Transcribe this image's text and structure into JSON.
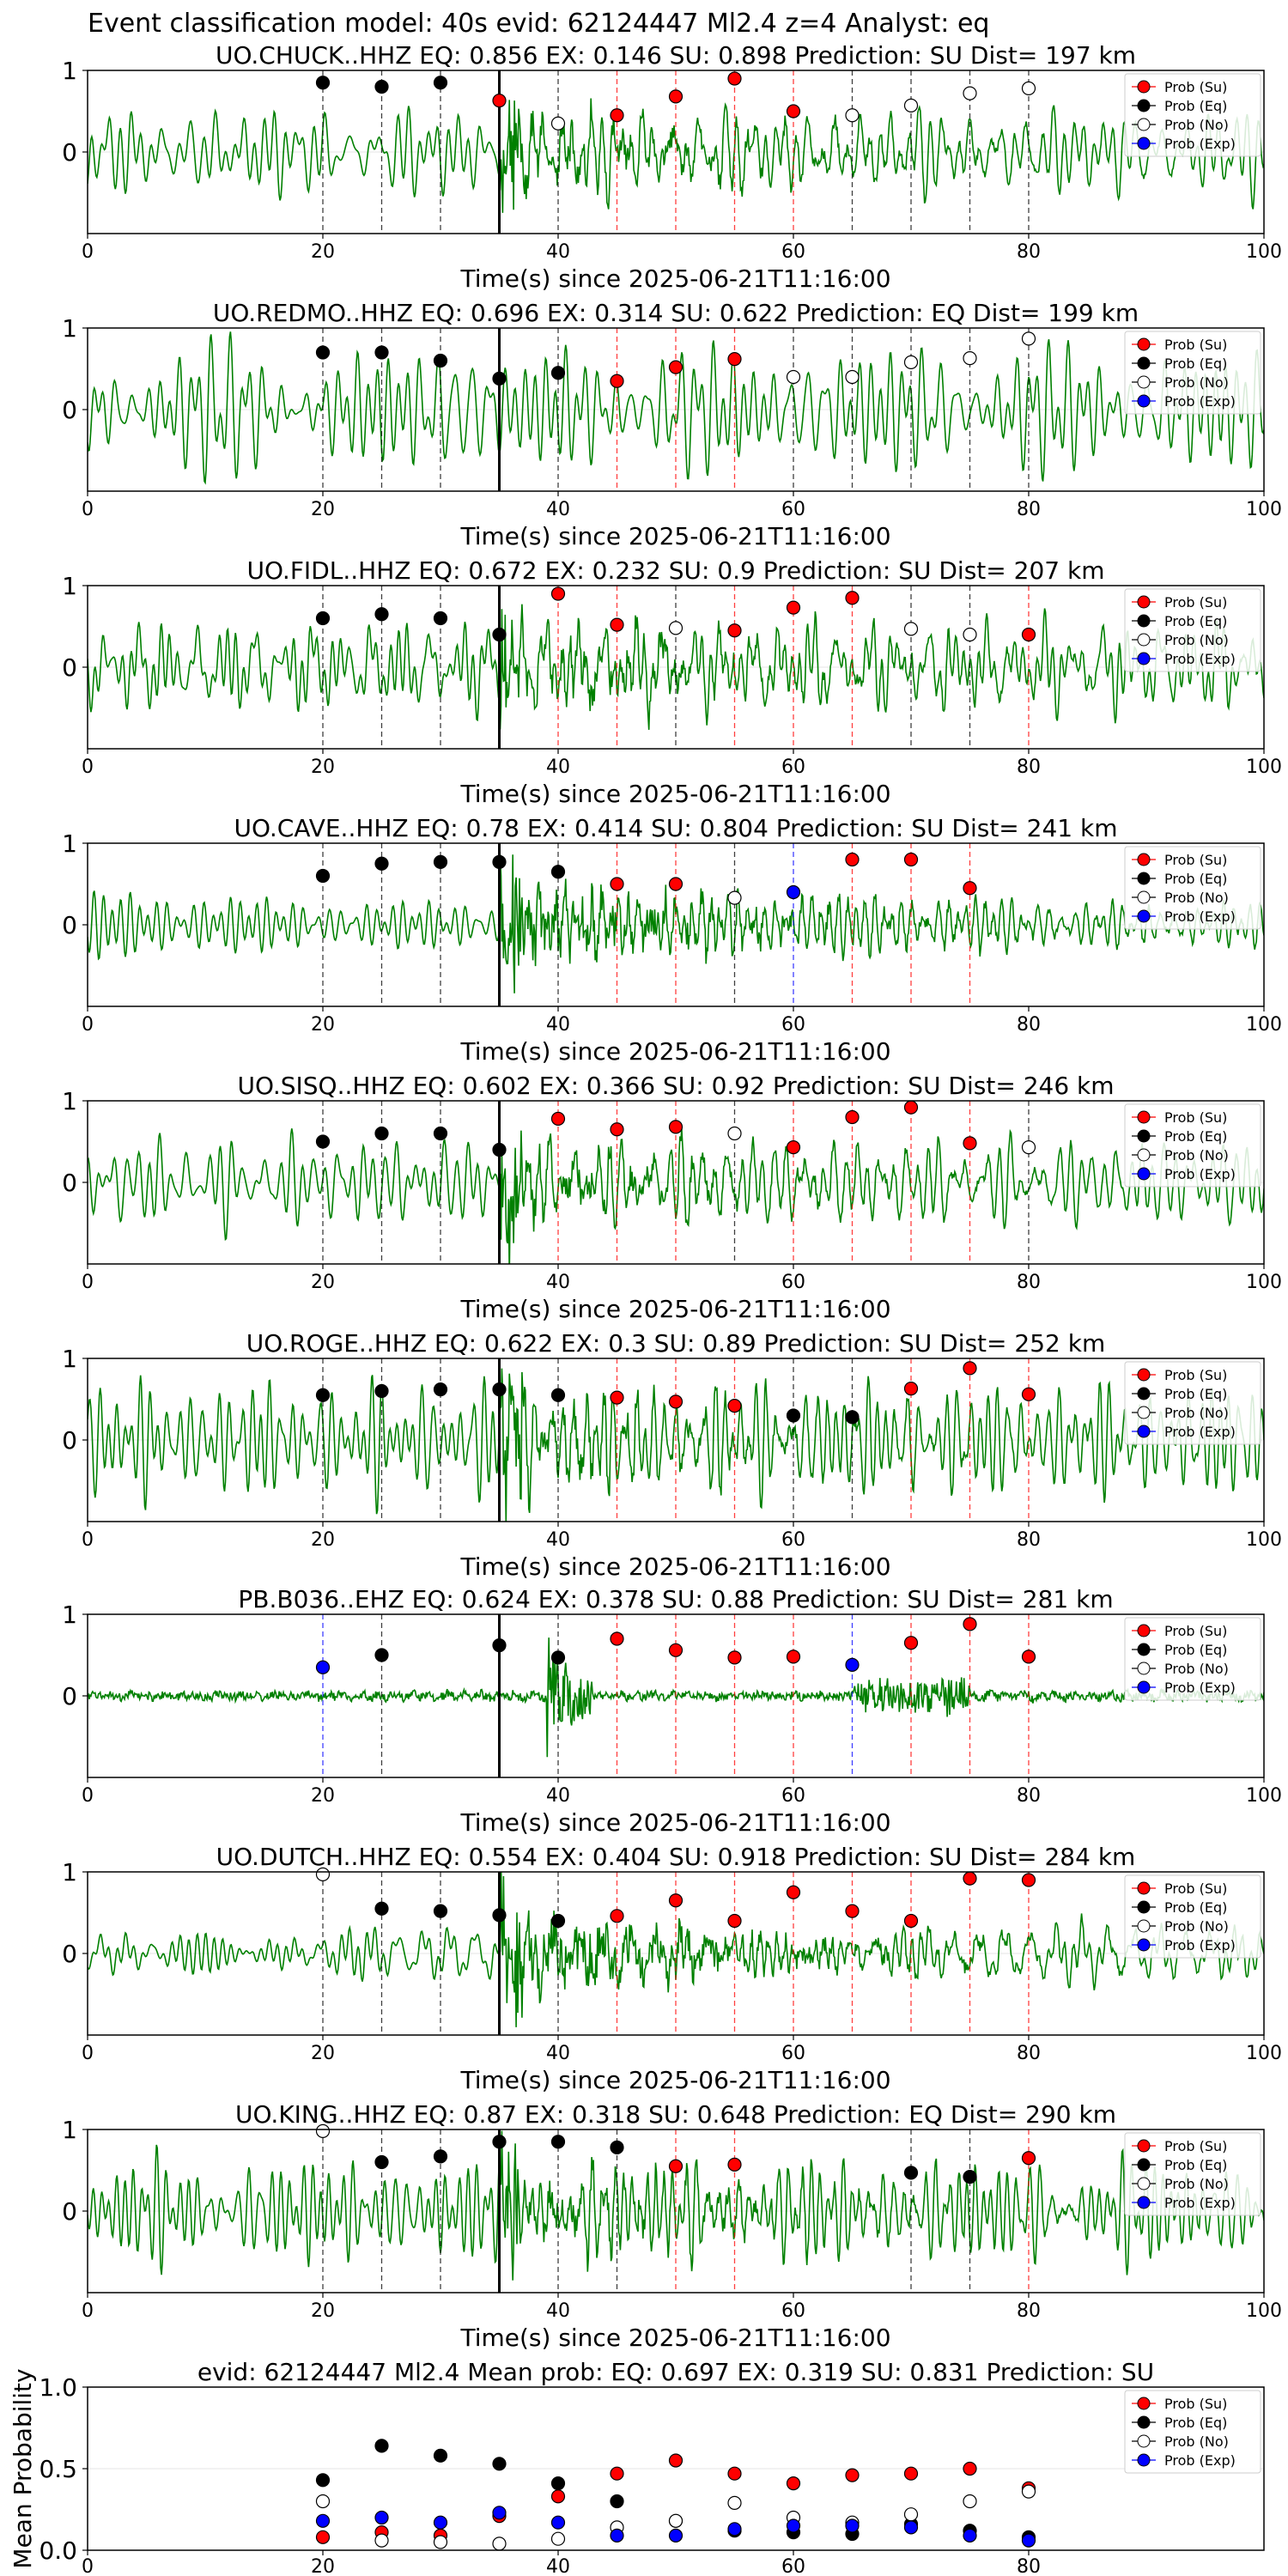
{
  "figure": {
    "title": "Event classification model: 40s evid: 62124447 Ml2.4 z=4 Analyst: eq",
    "colors": {
      "trace": "#008000",
      "su": "#ff0000",
      "eq": "#000000",
      "no": "#ffffff",
      "exp": "#0000ff",
      "pick_line": "#000000",
      "su_line": "#ff0000",
      "eq_line": "#000000",
      "exp_line": "#0000ff"
    }
  },
  "legend": [
    "Prob (Su)",
    "Prob (Eq)",
    "Prob (No)",
    "Prob (Exp)"
  ],
  "chart_data": [
    {
      "type": "scatter",
      "title": "UO.CHUCK..HHZ   EQ: 0.856  EX: 0.146  SU: 0.898   Prediction: SU    Dist= 197 km",
      "xlabel": "Time(s) since 2025-06-21T11:16:00",
      "ylabel": "",
      "xlim": [
        0,
        100
      ],
      "ylim": [
        -1,
        1
      ],
      "xticks": [
        0,
        20,
        40,
        60,
        80,
        100
      ],
      "yticks": [
        0,
        1
      ],
      "pick_time": 35,
      "trace": {
        "style": "mixed",
        "amplitude": 0.55
      },
      "legend_entries": [
        "Prob (Su)",
        "Prob (Eq)",
        "Prob (No)",
        "Prob (Exp)"
      ],
      "windows": [
        {
          "t": 20,
          "cls": "eq",
          "p": 0.85
        },
        {
          "t": 25,
          "cls": "eq",
          "p": 0.8
        },
        {
          "t": 30,
          "cls": "eq",
          "p": 0.85
        },
        {
          "t": 35,
          "cls": "su",
          "p": 0.63
        },
        {
          "t": 40,
          "cls": "no",
          "p": 0.35
        },
        {
          "t": 45,
          "cls": "su",
          "p": 0.45
        },
        {
          "t": 50,
          "cls": "su",
          "p": 0.68
        },
        {
          "t": 55,
          "cls": "su",
          "p": 0.9
        },
        {
          "t": 60,
          "cls": "su",
          "p": 0.5
        },
        {
          "t": 65,
          "cls": "no",
          "p": 0.45
        },
        {
          "t": 70,
          "cls": "no",
          "p": 0.57
        },
        {
          "t": 75,
          "cls": "no",
          "p": 0.72
        },
        {
          "t": 80,
          "cls": "no",
          "p": 0.78
        }
      ]
    },
    {
      "type": "scatter",
      "title": "UO.REDMO..HHZ   EQ: 0.696  EX: 0.314  SU: 0.622   Prediction: EQ    Dist= 199 km",
      "xlabel": "Time(s) since 2025-06-21T11:16:00",
      "ylabel": "",
      "xlim": [
        0,
        100
      ],
      "ylim": [
        -1,
        1
      ],
      "xticks": [
        0,
        20,
        40,
        60,
        80,
        100
      ],
      "yticks": [
        0,
        1
      ],
      "pick_time": 35,
      "trace": {
        "style": "smooth",
        "amplitude": 0.55
      },
      "legend_entries": [
        "Prob (Su)",
        "Prob (Eq)",
        "Prob (No)",
        "Prob (Exp)"
      ],
      "windows": [
        {
          "t": 20,
          "cls": "eq",
          "p": 0.7
        },
        {
          "t": 25,
          "cls": "eq",
          "p": 0.7
        },
        {
          "t": 30,
          "cls": "eq",
          "p": 0.6
        },
        {
          "t": 35,
          "cls": "eq",
          "p": 0.38
        },
        {
          "t": 40,
          "cls": "eq",
          "p": 0.45
        },
        {
          "t": 45,
          "cls": "su",
          "p": 0.35
        },
        {
          "t": 50,
          "cls": "su",
          "p": 0.52
        },
        {
          "t": 55,
          "cls": "su",
          "p": 0.62
        },
        {
          "t": 60,
          "cls": "no",
          "p": 0.4
        },
        {
          "t": 65,
          "cls": "no",
          "p": 0.4
        },
        {
          "t": 70,
          "cls": "no",
          "p": 0.58
        },
        {
          "t": 75,
          "cls": "no",
          "p": 0.63
        },
        {
          "t": 80,
          "cls": "no",
          "p": 0.87
        }
      ]
    },
    {
      "type": "scatter",
      "title": "UO.FIDL..HHZ   EQ: 0.672  EX: 0.232  SU: 0.9   Prediction: SU    Dist= 207 km",
      "xlabel": "Time(s) since 2025-06-21T11:16:00",
      "ylabel": "",
      "xlim": [
        0,
        100
      ],
      "ylim": [
        -1,
        1
      ],
      "xticks": [
        0,
        20,
        40,
        60,
        80,
        100
      ],
      "yticks": [
        0,
        1
      ],
      "pick_time": 35,
      "trace": {
        "style": "mixed",
        "amplitude": 0.5
      },
      "legend_entries": [
        "Prob (Su)",
        "Prob (Eq)",
        "Prob (No)",
        "Prob (Exp)"
      ],
      "windows": [
        {
          "t": 20,
          "cls": "eq",
          "p": 0.6
        },
        {
          "t": 25,
          "cls": "eq",
          "p": 0.65
        },
        {
          "t": 30,
          "cls": "eq",
          "p": 0.6
        },
        {
          "t": 35,
          "cls": "eq",
          "p": 0.4
        },
        {
          "t": 40,
          "cls": "su",
          "p": 0.9
        },
        {
          "t": 45,
          "cls": "su",
          "p": 0.52
        },
        {
          "t": 50,
          "cls": "no",
          "p": 0.48
        },
        {
          "t": 55,
          "cls": "su",
          "p": 0.45
        },
        {
          "t": 60,
          "cls": "su",
          "p": 0.73
        },
        {
          "t": 65,
          "cls": "su",
          "p": 0.85
        },
        {
          "t": 70,
          "cls": "no",
          "p": 0.47
        },
        {
          "t": 75,
          "cls": "no",
          "p": 0.4
        },
        {
          "t": 80,
          "cls": "su",
          "p": 0.4
        }
      ]
    },
    {
      "type": "scatter",
      "title": "UO.CAVE..HHZ   EQ: 0.78  EX: 0.414  SU: 0.804   Prediction: SU    Dist= 241 km",
      "xlabel": "Time(s) since 2025-06-21T11:16:00",
      "ylabel": "",
      "xlim": [
        0,
        100
      ],
      "ylim": [
        -1,
        1
      ],
      "xticks": [
        0,
        20,
        40,
        60,
        80,
        100
      ],
      "yticks": [
        0,
        1
      ],
      "pick_time": 35,
      "trace": {
        "style": "noisy",
        "amplitude": 0.3
      },
      "legend_entries": [
        "Prob (Su)",
        "Prob (Eq)",
        "Prob (No)",
        "Prob (Exp)"
      ],
      "windows": [
        {
          "t": 20,
          "cls": "eq",
          "p": 0.6
        },
        {
          "t": 25,
          "cls": "eq",
          "p": 0.75
        },
        {
          "t": 30,
          "cls": "eq",
          "p": 0.77
        },
        {
          "t": 35,
          "cls": "eq",
          "p": 0.77
        },
        {
          "t": 40,
          "cls": "eq",
          "p": 0.65
        },
        {
          "t": 45,
          "cls": "su",
          "p": 0.5
        },
        {
          "t": 50,
          "cls": "su",
          "p": 0.5
        },
        {
          "t": 55,
          "cls": "no",
          "p": 0.33
        },
        {
          "t": 60,
          "cls": "exp",
          "p": 0.4
        },
        {
          "t": 65,
          "cls": "su",
          "p": 0.8
        },
        {
          "t": 70,
          "cls": "su",
          "p": 0.8
        },
        {
          "t": 75,
          "cls": "su",
          "p": 0.45
        }
      ]
    },
    {
      "type": "scatter",
      "title": "UO.SISQ..HHZ   EQ: 0.602  EX: 0.366  SU: 0.92   Prediction: SU    Dist= 246 km",
      "xlabel": "Time(s) since 2025-06-21T11:16:00",
      "ylabel": "",
      "xlim": [
        0,
        100
      ],
      "ylim": [
        -1,
        1
      ],
      "xticks": [
        0,
        20,
        40,
        60,
        80,
        100
      ],
      "yticks": [
        0,
        1
      ],
      "pick_time": 35,
      "trace": {
        "style": "mixed",
        "amplitude": 0.5
      },
      "legend_entries": [
        "Prob (Su)",
        "Prob (Eq)",
        "Prob (No)",
        "Prob (Exp)"
      ],
      "windows": [
        {
          "t": 20,
          "cls": "eq",
          "p": 0.5
        },
        {
          "t": 25,
          "cls": "eq",
          "p": 0.6
        },
        {
          "t": 30,
          "cls": "eq",
          "p": 0.6
        },
        {
          "t": 35,
          "cls": "eq",
          "p": 0.4
        },
        {
          "t": 40,
          "cls": "su",
          "p": 0.78
        },
        {
          "t": 45,
          "cls": "su",
          "p": 0.65
        },
        {
          "t": 50,
          "cls": "su",
          "p": 0.68
        },
        {
          "t": 55,
          "cls": "no",
          "p": 0.6
        },
        {
          "t": 60,
          "cls": "su",
          "p": 0.43
        },
        {
          "t": 65,
          "cls": "su",
          "p": 0.8
        },
        {
          "t": 70,
          "cls": "su",
          "p": 0.92
        },
        {
          "t": 75,
          "cls": "su",
          "p": 0.48
        },
        {
          "t": 80,
          "cls": "no",
          "p": 0.43
        }
      ]
    },
    {
      "type": "scatter",
      "title": "UO.ROGE..HHZ   EQ: 0.622  EX: 0.3  SU: 0.89   Prediction: SU    Dist= 252 km",
      "xlabel": "Time(s) since 2025-06-21T11:16:00",
      "ylabel": "",
      "xlim": [
        0,
        100
      ],
      "ylim": [
        -1,
        1
      ],
      "xticks": [
        0,
        20,
        40,
        60,
        80,
        100
      ],
      "yticks": [
        0,
        1
      ],
      "pick_time": 35,
      "trace": {
        "style": "mixed",
        "amplitude": 0.55
      },
      "legend_entries": [
        "Prob (Su)",
        "Prob (Eq)",
        "Prob (No)",
        "Prob (Exp)"
      ],
      "windows": [
        {
          "t": 20,
          "cls": "eq",
          "p": 0.55
        },
        {
          "t": 25,
          "cls": "eq",
          "p": 0.6
        },
        {
          "t": 30,
          "cls": "eq",
          "p": 0.62
        },
        {
          "t": 35,
          "cls": "eq",
          "p": 0.62
        },
        {
          "t": 40,
          "cls": "eq",
          "p": 0.55
        },
        {
          "t": 45,
          "cls": "su",
          "p": 0.52
        },
        {
          "t": 50,
          "cls": "su",
          "p": 0.47
        },
        {
          "t": 55,
          "cls": "su",
          "p": 0.42
        },
        {
          "t": 60,
          "cls": "eq",
          "p": 0.3
        },
        {
          "t": 65,
          "cls": "eq",
          "p": 0.28
        },
        {
          "t": 70,
          "cls": "su",
          "p": 0.63
        },
        {
          "t": 75,
          "cls": "su",
          "p": 0.88
        },
        {
          "t": 80,
          "cls": "su",
          "p": 0.56
        }
      ]
    },
    {
      "type": "scatter",
      "title": "PB.B036..EHZ   EQ: 0.624  EX: 0.378  SU: 0.88   Prediction: SU    Dist= 281 km",
      "xlabel": "Time(s) since 2025-06-21T11:16:00",
      "ylabel": "",
      "xlim": [
        0,
        100
      ],
      "ylim": [
        -1,
        1
      ],
      "xticks": [
        0,
        20,
        40,
        60,
        80,
        100
      ],
      "yticks": [
        0,
        1
      ],
      "pick_time": 35,
      "trace": {
        "style": "quiet",
        "amplitude": 0.05
      },
      "legend_entries": [
        "Prob (Su)",
        "Prob (Eq)",
        "Prob (No)",
        "Prob (Exp)"
      ],
      "windows": [
        {
          "t": 20,
          "cls": "exp",
          "p": 0.35
        },
        {
          "t": 25,
          "cls": "eq",
          "p": 0.5
        },
        {
          "t": 35,
          "cls": "eq",
          "p": 0.62
        },
        {
          "t": 40,
          "cls": "eq",
          "p": 0.47
        },
        {
          "t": 45,
          "cls": "su",
          "p": 0.7
        },
        {
          "t": 50,
          "cls": "su",
          "p": 0.56
        },
        {
          "t": 55,
          "cls": "su",
          "p": 0.47
        },
        {
          "t": 60,
          "cls": "su",
          "p": 0.48
        },
        {
          "t": 65,
          "cls": "exp",
          "p": 0.38
        },
        {
          "t": 70,
          "cls": "su",
          "p": 0.65
        },
        {
          "t": 75,
          "cls": "su",
          "p": 0.88
        },
        {
          "t": 80,
          "cls": "su",
          "p": 0.48
        }
      ]
    },
    {
      "type": "scatter",
      "title": "UO.DUTCH..HHZ   EQ: 0.554  EX: 0.404  SU: 0.918   Prediction: SU    Dist= 284 km",
      "xlabel": "Time(s) since 2025-06-21T11:16:00",
      "ylabel": "",
      "xlim": [
        0,
        100
      ],
      "ylim": [
        -1,
        1
      ],
      "xticks": [
        0,
        20,
        40,
        60,
        80,
        100
      ],
      "yticks": [
        0,
        1
      ],
      "pick_time": 35,
      "trace": {
        "style": "noisy",
        "amplitude": 0.35
      },
      "legend_entries": [
        "Prob (Su)",
        "Prob (Eq)",
        "Prob (No)",
        "Prob (Exp)"
      ],
      "windows": [
        {
          "t": 20,
          "cls": "no",
          "p": 0.97
        },
        {
          "t": 25,
          "cls": "eq",
          "p": 0.55
        },
        {
          "t": 30,
          "cls": "eq",
          "p": 0.52
        },
        {
          "t": 35,
          "cls": "eq",
          "p": 0.47
        },
        {
          "t": 40,
          "cls": "eq",
          "p": 0.4
        },
        {
          "t": 45,
          "cls": "su",
          "p": 0.46
        },
        {
          "t": 50,
          "cls": "su",
          "p": 0.65
        },
        {
          "t": 55,
          "cls": "su",
          "p": 0.4
        },
        {
          "t": 60,
          "cls": "su",
          "p": 0.75
        },
        {
          "t": 65,
          "cls": "su",
          "p": 0.52
        },
        {
          "t": 70,
          "cls": "su",
          "p": 0.4
        },
        {
          "t": 75,
          "cls": "su",
          "p": 0.92
        },
        {
          "t": 80,
          "cls": "su",
          "p": 0.9
        }
      ]
    },
    {
      "type": "scatter",
      "title": "UO.KING..HHZ   EQ: 0.87  EX: 0.318  SU: 0.648   Prediction: EQ    Dist= 290 km",
      "xlabel": "Time(s) since 2025-06-21T11:16:00",
      "ylabel": "",
      "xlim": [
        0,
        100
      ],
      "ylim": [
        -1,
        1
      ],
      "xticks": [
        0,
        20,
        40,
        60,
        80,
        100
      ],
      "yticks": [
        0,
        1
      ],
      "pick_time": 35,
      "trace": {
        "style": "mixed",
        "amplitude": 0.45
      },
      "legend_entries": [
        "Prob (Su)",
        "Prob (Eq)",
        "Prob (No)",
        "Prob (Exp)"
      ],
      "windows": [
        {
          "t": 20,
          "cls": "no",
          "p": 0.98
        },
        {
          "t": 25,
          "cls": "eq",
          "p": 0.6
        },
        {
          "t": 30,
          "cls": "eq",
          "p": 0.67
        },
        {
          "t": 35,
          "cls": "eq",
          "p": 0.85
        },
        {
          "t": 40,
          "cls": "eq",
          "p": 0.85
        },
        {
          "t": 45,
          "cls": "eq",
          "p": 0.78
        },
        {
          "t": 50,
          "cls": "su",
          "p": 0.55
        },
        {
          "t": 55,
          "cls": "su",
          "p": 0.57
        },
        {
          "t": 70,
          "cls": "eq",
          "p": 0.47
        },
        {
          "t": 75,
          "cls": "eq",
          "p": 0.42
        },
        {
          "t": 80,
          "cls": "su",
          "p": 0.65
        }
      ]
    },
    {
      "type": "scatter",
      "title": "evid: 62124447  Ml2.4   Mean prob:    EQ: 0.697  EX: 0.319  SU: 0.831   Prediction: SU",
      "xlabel": "",
      "ylabel": "Mean Probability",
      "xlim": [
        0,
        100
      ],
      "ylim": [
        0,
        1
      ],
      "xticks": [
        0,
        20,
        40,
        60,
        80
      ],
      "yticks": [
        0.0,
        0.5,
        1.0
      ],
      "ytick_labels": [
        "0.0",
        "0.5",
        "1.0"
      ],
      "legend_entries": [
        "Prob (Su)",
        "Prob (Eq)",
        "Prob (No)",
        "Prob (Exp)"
      ],
      "x": [
        20,
        25,
        30,
        35,
        40,
        45,
        50,
        55,
        60,
        65,
        70,
        75,
        80
      ],
      "series": [
        {
          "name": "Prob (Su)",
          "cls": "su",
          "values": [
            0.08,
            0.11,
            0.09,
            0.21,
            0.33,
            0.47,
            0.55,
            0.47,
            0.41,
            0.46,
            0.47,
            0.5,
            0.38
          ]
        },
        {
          "name": "Prob (Eq)",
          "cls": "eq",
          "values": [
            0.43,
            0.64,
            0.58,
            0.53,
            0.41,
            0.3,
            0.18,
            0.12,
            0.11,
            0.1,
            0.16,
            0.12,
            0.08
          ]
        },
        {
          "name": "Prob (No)",
          "cls": "no",
          "values": [
            0.3,
            0.06,
            0.05,
            0.04,
            0.07,
            0.14,
            0.18,
            0.29,
            0.2,
            0.17,
            0.22,
            0.3,
            0.36
          ]
        },
        {
          "name": "Prob (Exp)",
          "cls": "exp",
          "values": [
            0.18,
            0.2,
            0.17,
            0.23,
            0.17,
            0.09,
            0.09,
            0.13,
            0.15,
            0.15,
            0.14,
            0.09,
            0.06
          ]
        }
      ]
    }
  ]
}
